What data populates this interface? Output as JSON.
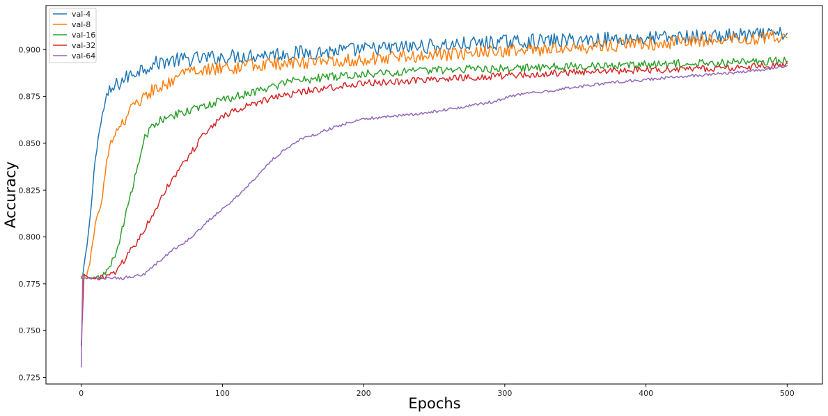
{
  "chart_data": {
    "type": "line",
    "title": "",
    "xlabel": "Epochs",
    "ylabel": "Accuracy",
    "xlim": [
      -25,
      525
    ],
    "ylim": [
      0.7215,
      0.9235
    ],
    "x_ticks": [
      0,
      100,
      200,
      300,
      400,
      500
    ],
    "x_tick_labels": [
      "0",
      "100",
      "200",
      "300",
      "400",
      "500"
    ],
    "y_ticks": [
      0.725,
      0.75,
      0.775,
      0.8,
      0.825,
      0.85,
      0.875,
      0.9
    ],
    "y_tick_labels": [
      "0.725",
      "0.750",
      "0.775",
      "0.800",
      "0.825",
      "0.850",
      "0.875",
      "0.900"
    ],
    "grid": false,
    "legend_position": "top-left",
    "series": [
      {
        "name": "val-4",
        "color": "#1f77b4",
        "x": [
          0,
          1,
          2,
          4,
          6,
          8,
          10,
          12,
          14,
          16,
          18,
          20,
          25,
          30,
          40,
          50,
          60,
          80,
          100,
          120,
          150,
          200,
          250,
          300,
          350,
          400,
          450,
          500
        ],
        "y": [
          0.778,
          0.779,
          0.785,
          0.795,
          0.808,
          0.825,
          0.843,
          0.853,
          0.861,
          0.869,
          0.874,
          0.877,
          0.881,
          0.884,
          0.889,
          0.892,
          0.894,
          0.895,
          0.896,
          0.897,
          0.898,
          0.9,
          0.902,
          0.904,
          0.905,
          0.906,
          0.907,
          0.908
        ],
        "noise": 0.004
      },
      {
        "name": "val-8",
        "color": "#ff7f0e",
        "x": [
          0,
          2,
          4,
          6,
          8,
          10,
          14,
          18,
          22,
          26,
          30,
          35,
          40,
          50,
          60,
          70,
          80,
          100,
          130,
          160,
          200,
          250,
          300,
          350,
          400,
          450,
          500
        ],
        "y": [
          0.779,
          0.779,
          0.78,
          0.786,
          0.797,
          0.806,
          0.818,
          0.839,
          0.852,
          0.857,
          0.862,
          0.868,
          0.872,
          0.878,
          0.882,
          0.886,
          0.888,
          0.89,
          0.892,
          0.893,
          0.895,
          0.897,
          0.899,
          0.901,
          0.903,
          0.905,
          0.907
        ],
        "noise": 0.0035
      },
      {
        "name": "val-16",
        "color": "#2ca02c",
        "x": [
          0,
          5,
          10,
          15,
          20,
          25,
          30,
          35,
          40,
          45,
          50,
          60,
          70,
          80,
          90,
          100,
          110,
          120,
          130,
          140,
          150,
          170,
          200,
          250,
          300,
          350,
          400,
          450,
          500
        ],
        "y": [
          0.778,
          0.778,
          0.778,
          0.779,
          0.783,
          0.792,
          0.807,
          0.822,
          0.838,
          0.853,
          0.859,
          0.864,
          0.866,
          0.868,
          0.871,
          0.873,
          0.875,
          0.877,
          0.879,
          0.881,
          0.883,
          0.885,
          0.887,
          0.889,
          0.89,
          0.891,
          0.892,
          0.893,
          0.894
        ],
        "noise": 0.0022
      },
      {
        "name": "val-32",
        "color": "#d62728",
        "x": [
          0,
          2,
          5,
          10,
          20,
          25,
          30,
          40,
          50,
          60,
          70,
          80,
          90,
          100,
          110,
          120,
          140,
          160,
          180,
          200,
          250,
          300,
          350,
          400,
          450,
          500
        ],
        "y": [
          0.742,
          0.78,
          0.778,
          0.778,
          0.779,
          0.782,
          0.787,
          0.798,
          0.811,
          0.826,
          0.837,
          0.847,
          0.858,
          0.864,
          0.868,
          0.871,
          0.875,
          0.878,
          0.88,
          0.882,
          0.884,
          0.886,
          0.888,
          0.889,
          0.89,
          0.892
        ],
        "noise": 0.0018
      },
      {
        "name": "val-64",
        "color": "#9467bd",
        "x": [
          0,
          1,
          10,
          30,
          35,
          45,
          55,
          65,
          75,
          85,
          95,
          105,
          115,
          125,
          135,
          145,
          155,
          170,
          185,
          200,
          230,
          260,
          290,
          310,
          340,
          370,
          400,
          430,
          470,
          500
        ],
        "y": [
          0.7305,
          0.778,
          0.778,
          0.778,
          0.779,
          0.78,
          0.787,
          0.793,
          0.798,
          0.805,
          0.812,
          0.818,
          0.825,
          0.833,
          0.841,
          0.847,
          0.852,
          0.856,
          0.86,
          0.863,
          0.865,
          0.868,
          0.872,
          0.876,
          0.879,
          0.882,
          0.884,
          0.886,
          0.888,
          0.891
        ],
        "noise": 0.0008
      }
    ]
  }
}
